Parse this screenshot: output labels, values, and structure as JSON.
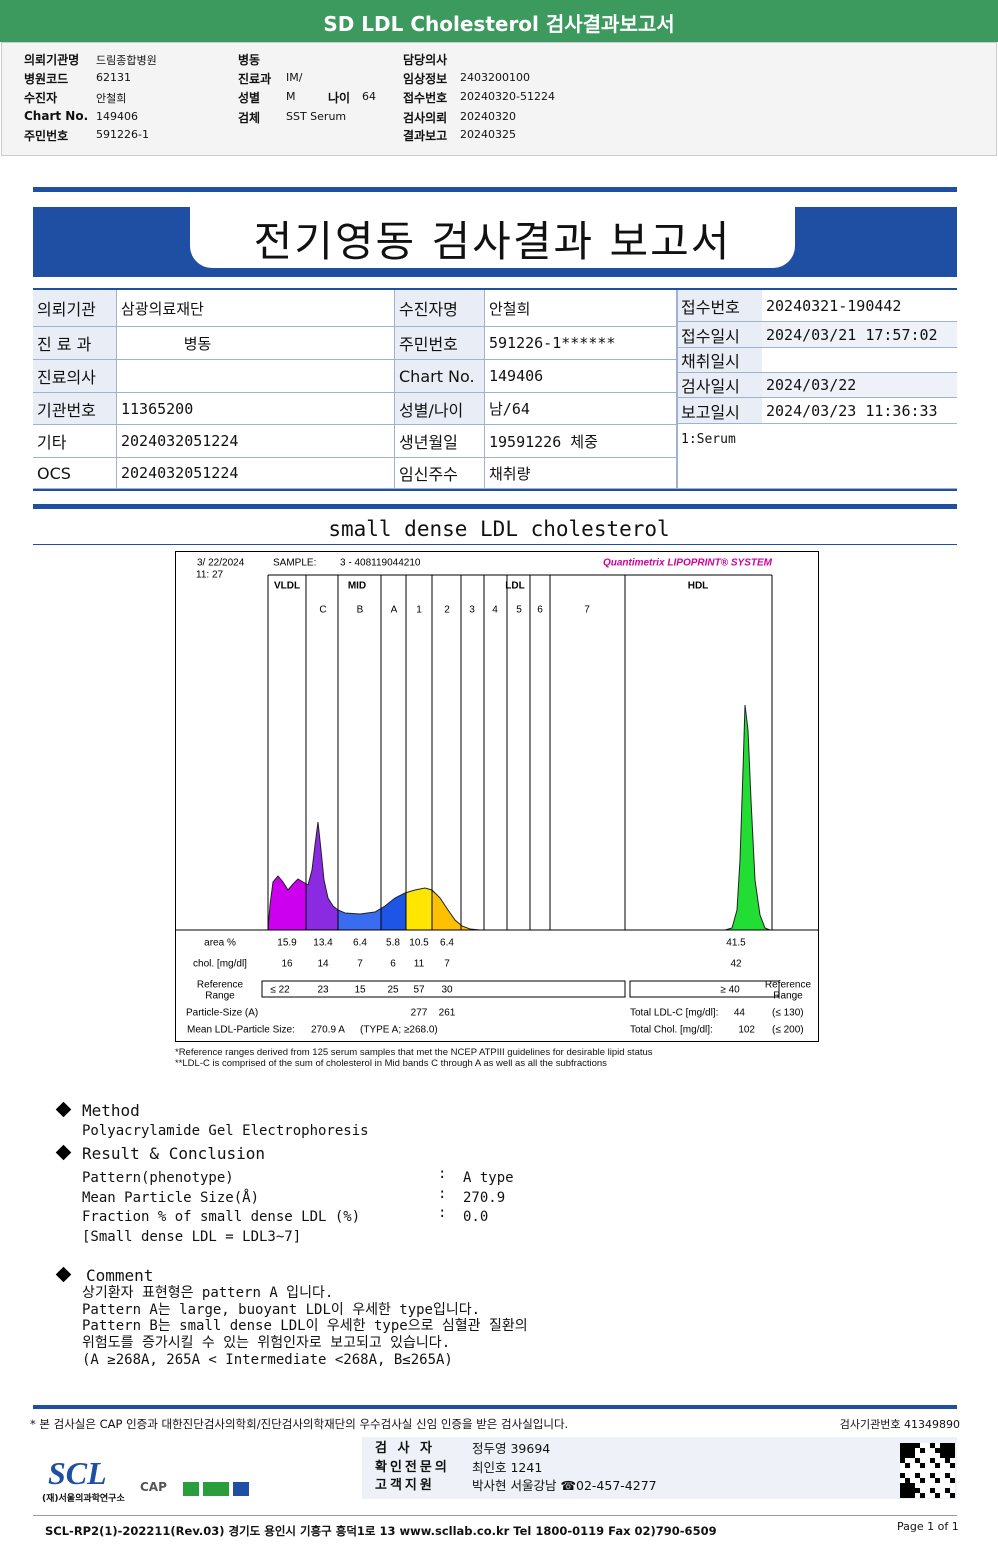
{
  "header": {
    "title": "SD LDL Cholesterol 검사결과보고서"
  },
  "info": {
    "col1": [
      {
        "label": "의뢰기관명",
        "value": "드림종합병원"
      },
      {
        "label": "병원코드",
        "value": "62131"
      },
      {
        "label": "수진자",
        "value": "안철희"
      },
      {
        "label": "Chart No.",
        "value": "149406"
      },
      {
        "label": "주민번호",
        "value": "591226-1"
      }
    ],
    "col2": [
      {
        "label": "병동"
      },
      {
        "label": "진료과",
        "value": "IM/"
      },
      {
        "label": "성별",
        "value": "M",
        "extra": {
          "label": "나이",
          "value": "64"
        }
      },
      {
        "label": "검체",
        "value": "SST Serum"
      }
    ],
    "col3": [
      {
        "label": "담당의사"
      },
      {
        "label": "임상정보",
        "value": "2403200100"
      },
      {
        "label": "접수번호",
        "value": "20240320-51224"
      },
      {
        "label": "검사의뢰",
        "value": "20240320"
      },
      {
        "label": "결과보고",
        "value": "20240325"
      }
    ]
  },
  "report": {
    "title": "전기영동 검사결과 보고서"
  },
  "patient_table": {
    "left": [
      {
        "label": "의뢰기관",
        "value": "삼광의료재단"
      },
      {
        "label": "진 료 과",
        "value": "병동"
      },
      {
        "label": "진료의사"
      },
      {
        "label": "기관번호",
        "value": "11365200"
      },
      {
        "label": "기타",
        "value": "2024032051224"
      },
      {
        "label": "OCS",
        "value": "2024032051224"
      }
    ],
    "middle": [
      {
        "label": "수진자명",
        "value": "안철희"
      },
      {
        "label": "주민번호",
        "value": "591226-1******"
      },
      {
        "label": "Chart No.",
        "value": "149406"
      },
      {
        "label": "성별/나이",
        "value": "남/64"
      },
      {
        "label": "생년월일",
        "value": "19591226 체중"
      },
      {
        "label": "임신주수",
        "value": "채취량"
      }
    ],
    "right": [
      {
        "label": "접수번호",
        "value": "20240321-190442"
      },
      {
        "label": "접수일시",
        "value": "2024/03/21 17:57:02"
      },
      {
        "label": "채취일시"
      },
      {
        "label": "검사일시",
        "value": "2024/03/22"
      },
      {
        "label": "보고일시",
        "value": "2024/03/23 11:36:33"
      }
    ],
    "remark": "1:Serum"
  },
  "section_title": "small dense LDL cholesterol",
  "lipoprint": {
    "date": "3/ 22/2024",
    "time": "11: 27",
    "sample_label": "SAMPLE:",
    "sample": "3 - 408119044210",
    "system": "Quantimetrix LIPOPRINT® SYSTEM",
    "bands": [
      "VLDL",
      "MID",
      "LDL",
      "HDL"
    ],
    "subbands": [
      "C",
      "B",
      "A",
      "1",
      "2",
      "3",
      "4",
      "5",
      "6",
      "7"
    ],
    "rows": [
      {
        "label": "area %",
        "values": [
          "15.9",
          "13.4",
          "6.4",
          "5.8",
          "10.5",
          "6.4"
        ],
        "hdl": "41.5"
      },
      {
        "label": "chol. [mg/dl]",
        "values": [
          "16",
          "14",
          "7",
          "6",
          "11",
          "7"
        ],
        "hdl": "42"
      }
    ],
    "reference": {
      "label": [
        "Reference",
        "Range"
      ],
      "values": [
        "≤ 22",
        "23",
        "15",
        "25",
        "57",
        "30"
      ],
      "hdl": "≥ 40"
    },
    "particle_size": {
      "label": "Particle-Size (A)",
      "values": [
        "277",
        "261"
      ]
    },
    "mean_size": {
      "label": "Mean LDL-Particle Size:",
      "value": "270.9 A",
      "type": "(TYPE A; ≥268.0)"
    },
    "total_ldl": {
      "label": "Total LDL-C [mg/dl]:",
      "value": "44",
      "range": "(≤ 130)"
    },
    "total_chol": {
      "label": "Total Chol. [mg/dl]:",
      "value": "102",
      "range": "(≤ 200)"
    }
  },
  "footnotes": [
    "*Reference ranges derived from 125 serum samples that met the NCEP ATPIII guidelines for desirable lipid status",
    "**LDL-C is comprised of the sum of cholesterol in Mid bands C through A as well as all the subfractions"
  ],
  "method": {
    "heading": "Method",
    "text": "Polyacrylamide Gel Electrophoresis"
  },
  "result": {
    "heading": "Result & Conclusion",
    "sep": ":",
    "rows": [
      {
        "label": "Pattern(phenotype)",
        "value": "A type"
      },
      {
        "label": "Mean Particle Size(Å)",
        "value": "270.9"
      },
      {
        "label": "Fraction % of small dense LDL (%)",
        "value": "0.0"
      }
    ],
    "note": "[Small dense LDL = LDL3~7]"
  },
  "comment": {
    "heading": "Comment",
    "lines": [
      "상기환자 표현형은 pattern A 입니다.",
      "Pattern A는 large, buoyant LDL이 우세한 type입니다.",
      "Pattern B는 small dense LDL이 우세한 type으로 심혈관 질환의",
      "위험도를 증가시킬 수 있는 위험인자로 보고되고 있습니다.",
      "(A ≥268A, 265A < Intermediate <268A, B≤265A)"
    ]
  },
  "footer": {
    "statement": "* 본 검사실은 CAP 인증과 대한진단검사의학회/진단검사의학재단의 우수검사실 신임 인증을 받은 검사실입니다.",
    "institution_no": "검사기관번호 41349890",
    "staff": [
      {
        "label": "검 사 자",
        "value": "정두영 39694"
      },
      {
        "label": "확인전문의",
        "value": "최인호 1241"
      },
      {
        "label": "고객지원",
        "value": "박사현 서울강남 ☎02-457-4277"
      }
    ],
    "logo": "SCL",
    "logo_sub": "(재)서울의과학연구소",
    "cap": "CAP",
    "address": "SCL-RP2(1)-202211(Rev.03)  경기도 용인시 기흥구 흥덕1로 13  www.scllab.co.kr  Tel 1800-0119  Fax 02)790-6509",
    "page": "Page 1 of 1"
  }
}
